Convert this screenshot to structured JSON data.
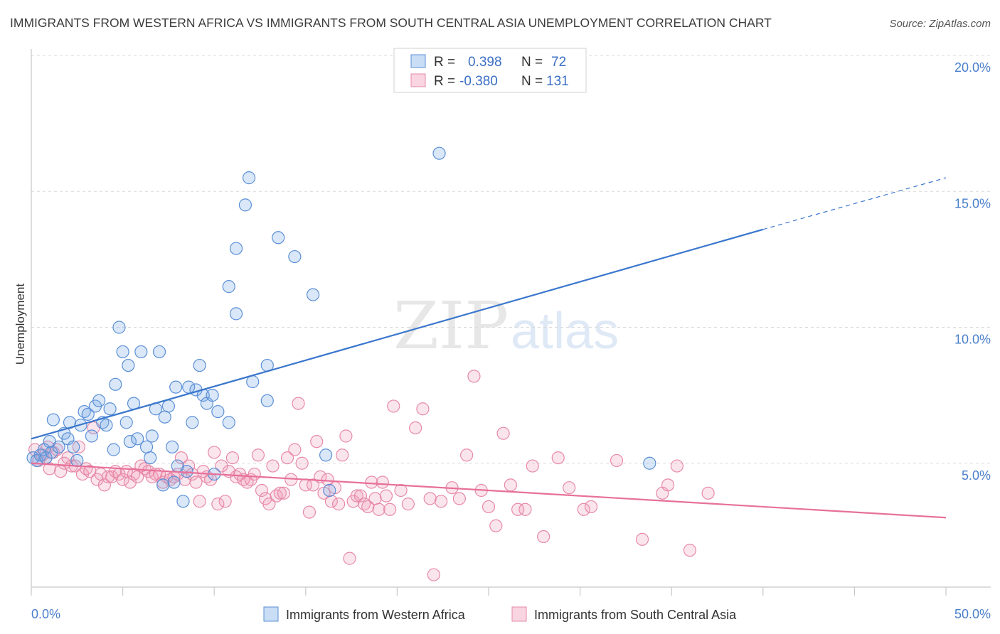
{
  "title": "IMMIGRANTS FROM WESTERN AFRICA VS IMMIGRANTS FROM SOUTH CENTRAL ASIA UNEMPLOYMENT CORRELATION CHART",
  "source": "Source: ZipAtlas.com",
  "watermark": {
    "part1": "ZIP",
    "part2": "atlas"
  },
  "colors": {
    "blue": "#3a76cc",
    "pink": "#e7709a",
    "tick": "#4a7fcb"
  },
  "legend": {
    "r_label": "R =",
    "n_label": "N =",
    "rows": [
      {
        "r": "0.398",
        "n": "72"
      },
      {
        "r": "-0.380",
        "n": "131"
      }
    ]
  },
  "chart_data": {
    "type": "scatter",
    "title": "IMMIGRANTS FROM WESTERN AFRICA VS IMMIGRANTS FROM SOUTH CENTRAL ASIA UNEMPLOYMENT CORRELATION CHART",
    "xlabel": "",
    "ylabel": "Unemployment",
    "xlim": [
      0,
      50
    ],
    "ylim": [
      0,
      20
    ],
    "x_ticks": [
      "0.0%",
      "50.0%"
    ],
    "y_ticks": [
      {
        "value": 5,
        "label": "5.0%"
      },
      {
        "value": 10,
        "label": "10.0%"
      },
      {
        "value": 15,
        "label": "15.0%"
      },
      {
        "value": 20,
        "label": "20.0%"
      }
    ],
    "grid": true,
    "legend_position": "top-center",
    "series": [
      {
        "name": "Immigrants from Western Africa",
        "color": "#3a76cc",
        "r": 0.398,
        "n": 72,
        "trend": {
          "x": [
            0,
            40
          ],
          "y": [
            5.9,
            13.6
          ],
          "extend_dashed_to": [
            50,
            15.5
          ]
        },
        "points": [
          [
            0.1,
            5.2
          ],
          [
            0.3,
            5.1
          ],
          [
            0.5,
            5.3
          ],
          [
            0.7,
            5.5
          ],
          [
            0.8,
            5.2
          ],
          [
            1.0,
            5.8
          ],
          [
            1.1,
            5.4
          ],
          [
            1.2,
            6.6
          ],
          [
            1.5,
            5.6
          ],
          [
            1.8,
            6.1
          ],
          [
            2.0,
            5.9
          ],
          [
            2.1,
            6.5
          ],
          [
            2.3,
            5.6
          ],
          [
            2.5,
            5.1
          ],
          [
            2.7,
            6.4
          ],
          [
            2.9,
            6.9
          ],
          [
            3.1,
            6.8
          ],
          [
            3.3,
            6.0
          ],
          [
            3.5,
            7.1
          ],
          [
            3.7,
            7.3
          ],
          [
            3.9,
            6.5
          ],
          [
            4.1,
            6.4
          ],
          [
            4.3,
            7.0
          ],
          [
            4.5,
            5.5
          ],
          [
            4.6,
            7.9
          ],
          [
            4.8,
            10.0
          ],
          [
            5.0,
            9.1
          ],
          [
            5.2,
            6.5
          ],
          [
            5.3,
            8.6
          ],
          [
            5.4,
            5.8
          ],
          [
            5.6,
            7.2
          ],
          [
            5.8,
            5.9
          ],
          [
            6.0,
            9.1
          ],
          [
            6.3,
            5.6
          ],
          [
            6.5,
            5.2
          ],
          [
            6.6,
            6.0
          ],
          [
            6.8,
            7.0
          ],
          [
            7.0,
            9.1
          ],
          [
            7.2,
            4.2
          ],
          [
            7.3,
            6.7
          ],
          [
            7.5,
            7.1
          ],
          [
            7.7,
            5.6
          ],
          [
            7.8,
            4.3
          ],
          [
            7.9,
            7.8
          ],
          [
            8.0,
            4.9
          ],
          [
            8.3,
            3.6
          ],
          [
            8.5,
            4.7
          ],
          [
            8.6,
            7.8
          ],
          [
            8.8,
            6.5
          ],
          [
            9.0,
            7.7
          ],
          [
            9.2,
            8.6
          ],
          [
            9.4,
            7.5
          ],
          [
            9.6,
            7.2
          ],
          [
            9.9,
            7.5
          ],
          [
            10.0,
            4.6
          ],
          [
            10.2,
            6.9
          ],
          [
            10.8,
            6.5
          ],
          [
            10.8,
            11.5
          ],
          [
            11.2,
            10.5
          ],
          [
            11.2,
            12.9
          ],
          [
            11.7,
            14.5
          ],
          [
            11.9,
            15.5
          ],
          [
            12.1,
            8.0
          ],
          [
            12.9,
            8.6
          ],
          [
            12.9,
            7.3
          ],
          [
            13.5,
            13.3
          ],
          [
            14.4,
            12.6
          ],
          [
            15.4,
            11.2
          ],
          [
            16.1,
            5.3
          ],
          [
            16.3,
            4.0
          ],
          [
            22.3,
            16.4
          ],
          [
            33.8,
            5.0
          ]
        ]
      },
      {
        "name": "Immigrants from South Central Asia",
        "color": "#e7709a",
        "r": -0.38,
        "n": 131,
        "trend": {
          "x": [
            0,
            50
          ],
          "y": [
            5.0,
            3.0
          ]
        },
        "points": [
          [
            0.2,
            5.5
          ],
          [
            0.4,
            5.1
          ],
          [
            0.6,
            5.3
          ],
          [
            0.8,
            5.2
          ],
          [
            0.9,
            5.6
          ],
          [
            1.0,
            4.8
          ],
          [
            1.2,
            5.4
          ],
          [
            1.4,
            5.5
          ],
          [
            1.6,
            4.7
          ],
          [
            1.8,
            5.0
          ],
          [
            2.0,
            5.2
          ],
          [
            2.2,
            4.9
          ],
          [
            2.4,
            4.9
          ],
          [
            2.6,
            5.6
          ],
          [
            2.8,
            4.6
          ],
          [
            3.0,
            4.8
          ],
          [
            3.2,
            4.7
          ],
          [
            3.4,
            6.3
          ],
          [
            3.6,
            4.4
          ],
          [
            3.8,
            4.6
          ],
          [
            4.0,
            4.2
          ],
          [
            4.2,
            4.5
          ],
          [
            4.4,
            4.5
          ],
          [
            4.6,
            4.7
          ],
          [
            4.8,
            4.6
          ],
          [
            5.0,
            4.4
          ],
          [
            5.2,
            4.7
          ],
          [
            5.4,
            4.3
          ],
          [
            5.6,
            4.6
          ],
          [
            5.8,
            4.5
          ],
          [
            6.0,
            4.9
          ],
          [
            6.2,
            4.8
          ],
          [
            6.4,
            4.7
          ],
          [
            6.6,
            4.5
          ],
          [
            6.8,
            4.6
          ],
          [
            7.0,
            4.6
          ],
          [
            7.2,
            4.3
          ],
          [
            7.4,
            4.5
          ],
          [
            7.6,
            4.4
          ],
          [
            7.8,
            4.5
          ],
          [
            8.0,
            4.6
          ],
          [
            8.2,
            5.2
          ],
          [
            8.4,
            4.4
          ],
          [
            8.6,
            4.9
          ],
          [
            8.8,
            4.6
          ],
          [
            9.0,
            4.3
          ],
          [
            9.2,
            3.6
          ],
          [
            9.4,
            4.7
          ],
          [
            9.6,
            4.5
          ],
          [
            9.8,
            4.4
          ],
          [
            10.0,
            5.4
          ],
          [
            10.2,
            3.5
          ],
          [
            10.4,
            4.9
          ],
          [
            10.6,
            3.6
          ],
          [
            10.8,
            4.7
          ],
          [
            11.0,
            5.2
          ],
          [
            11.2,
            4.5
          ],
          [
            11.4,
            4.6
          ],
          [
            11.6,
            4.4
          ],
          [
            11.8,
            4.3
          ],
          [
            12.0,
            4.4
          ],
          [
            12.2,
            4.6
          ],
          [
            12.4,
            5.3
          ],
          [
            12.6,
            4.0
          ],
          [
            12.8,
            3.7
          ],
          [
            13.0,
            3.5
          ],
          [
            13.2,
            4.9
          ],
          [
            13.4,
            3.8
          ],
          [
            13.6,
            3.9
          ],
          [
            13.8,
            3.9
          ],
          [
            14.0,
            5.2
          ],
          [
            14.2,
            4.4
          ],
          [
            14.4,
            5.5
          ],
          [
            14.6,
            7.2
          ],
          [
            14.8,
            5.0
          ],
          [
            15.0,
            4.2
          ],
          [
            15.2,
            3.2
          ],
          [
            15.4,
            4.2
          ],
          [
            15.6,
            5.8
          ],
          [
            15.8,
            4.5
          ],
          [
            16.0,
            3.9
          ],
          [
            16.2,
            4.4
          ],
          [
            16.4,
            3.6
          ],
          [
            16.6,
            4.1
          ],
          [
            16.8,
            3.5
          ],
          [
            17.0,
            5.3
          ],
          [
            17.2,
            6.0
          ],
          [
            17.4,
            1.5
          ],
          [
            17.6,
            3.6
          ],
          [
            17.8,
            3.8
          ],
          [
            18.0,
            3.8
          ],
          [
            18.2,
            3.5
          ],
          [
            18.4,
            3.4
          ],
          [
            18.6,
            4.3
          ],
          [
            18.8,
            3.7
          ],
          [
            19.0,
            3.3
          ],
          [
            19.2,
            4.3
          ],
          [
            19.4,
            3.8
          ],
          [
            19.6,
            3.3
          ],
          [
            19.8,
            7.1
          ],
          [
            20.2,
            4.0
          ],
          [
            20.6,
            3.5
          ],
          [
            21.0,
            6.3
          ],
          [
            21.4,
            7.0
          ],
          [
            21.8,
            3.7
          ],
          [
            22.0,
            0.9
          ],
          [
            22.4,
            3.6
          ],
          [
            23.0,
            4.1
          ],
          [
            23.4,
            3.7
          ],
          [
            23.8,
            5.3
          ],
          [
            24.2,
            8.2
          ],
          [
            24.6,
            4.0
          ],
          [
            25.0,
            3.4
          ],
          [
            25.4,
            2.7
          ],
          [
            25.8,
            6.1
          ],
          [
            26.2,
            4.2
          ],
          [
            26.6,
            3.3
          ],
          [
            27.0,
            3.3
          ],
          [
            27.4,
            4.9
          ],
          [
            28.0,
            2.3
          ],
          [
            28.8,
            5.2
          ],
          [
            29.4,
            4.1
          ],
          [
            30.2,
            3.3
          ],
          [
            30.6,
            3.4
          ],
          [
            32.0,
            5.1
          ],
          [
            33.4,
            2.2
          ],
          [
            34.5,
            3.9
          ],
          [
            34.8,
            4.2
          ],
          [
            35.3,
            4.9
          ],
          [
            36.0,
            1.8
          ],
          [
            37.0,
            3.9
          ]
        ]
      }
    ]
  },
  "bottom_legend": [
    {
      "label": "Immigrants from Western Africa"
    },
    {
      "label": "Immigrants from South Central Asia"
    }
  ]
}
